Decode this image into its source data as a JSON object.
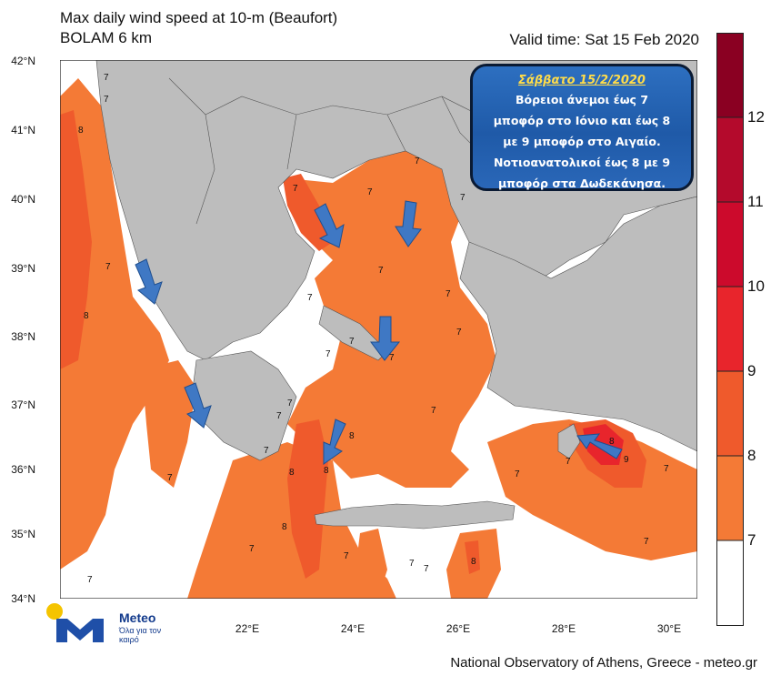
{
  "header": {
    "title_line1": "Max daily wind speed at 10-m (Beaufort)",
    "title_line2": "BOLAM 6 km",
    "valid_time": "Valid time: Sat 15 Feb 2020"
  },
  "axes": {
    "lat_labels": [
      "42°N",
      "41°N",
      "40°N",
      "39°N",
      "38°N",
      "37°N",
      "36°N",
      "35°N",
      "34°N"
    ],
    "lon_labels": [
      "22°E",
      "24°E",
      "26°E",
      "28°E",
      "30°E"
    ]
  },
  "colorbar": {
    "labels": [
      "7",
      "8",
      "9",
      "10",
      "11",
      "12"
    ],
    "colors": [
      "#ffffff",
      "#f47a36",
      "#ef5a2c",
      "#e8252c",
      "#cc0a2c",
      "#b40a2c",
      "#8a0022"
    ]
  },
  "callout": {
    "date": "Σάββατο 15/2/2020",
    "lines": [
      "Βόρειοι άνεμοι έως  7",
      "μποφόρ στο Ιόνιο και έως 8",
      "με 9 μποφόρ στο Αιγαίο.",
      "Νοτιοανατολικοί έως 8 με 9",
      "μποφόρ στα Δωδεκάνησα."
    ]
  },
  "map_labels": [
    "7",
    "7",
    "8",
    "7",
    "8",
    "7",
    "7",
    "7",
    "7",
    "7",
    "7",
    "7",
    "7",
    "7",
    "7",
    "7",
    "7",
    "7",
    "7",
    "7",
    "7",
    "7",
    "8",
    "8",
    "8",
    "7",
    "7",
    "8",
    "7",
    "7",
    "8",
    "7",
    "8",
    "9",
    "7",
    "7",
    "7"
  ],
  "logo": {
    "brand": "Meteo",
    "slogan": "Όλα για τον καιρό"
  },
  "footer": "National Observatory of Athens, Greece - meteo.gr",
  "colors": {
    "land": "#bdbdbd",
    "sea_low": "#ffffff",
    "wind7": "#f47a36",
    "wind8": "#ef5a2c",
    "wind9": "#e8252c",
    "arrow": "#3f78c4"
  }
}
